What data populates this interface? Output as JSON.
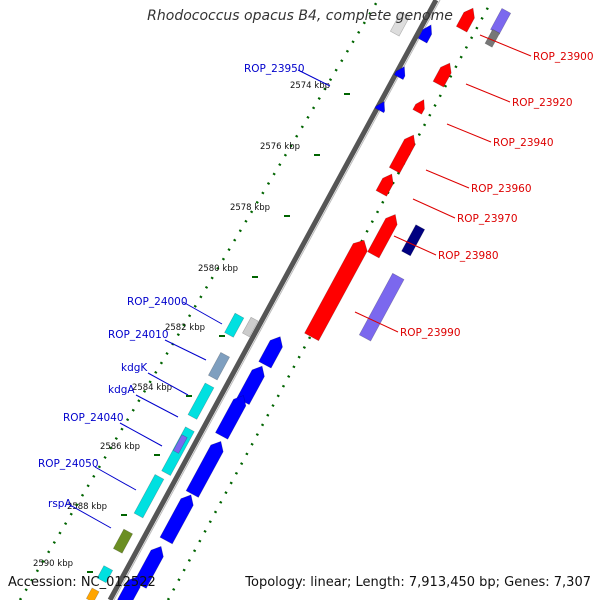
{
  "title": "Rhodococcus opacus B4, complete genome",
  "accession": "Accession: NC_012522",
  "summary": "Topology: linear; Length: 7,913,450 bp; Genes: 7,307",
  "colors": {
    "red": "#ff0000",
    "blue": "#0000ff",
    "purple": "#7b68ee",
    "navy": "#000080",
    "cyan": "#00e0e0",
    "olive": "#6b8e23",
    "orange": "#ffa500",
    "grey": "#777777",
    "label_blue": "#0000cc",
    "label_red": "#dd0000",
    "scale_green": "#006400"
  },
  "scale_labels": [
    {
      "text": "2574 kbp",
      "kbp": 2574
    },
    {
      "text": "2576 kbp",
      "kbp": 2576
    },
    {
      "text": "2578 kbp",
      "kbp": 2578
    },
    {
      "text": "2580 kbp",
      "kbp": 2580
    },
    {
      "text": "2582 kbp",
      "kbp": 2582
    },
    {
      "text": "2584 kbp",
      "kbp": 2584
    },
    {
      "text": "2586 kbp",
      "kbp": 2586
    },
    {
      "text": "2588 kbp",
      "kbp": 2588
    },
    {
      "text": "2590 kbp",
      "kbp": 2590
    }
  ],
  "gene_labels_left": [
    "ROP_23950",
    "ROP_24000",
    "ROP_24010",
    "kdgK",
    "kdgA",
    "ROP_24040",
    "ROP_24050",
    "rspA"
  ],
  "gene_labels_right": [
    "ROP_23900",
    "ROP_23920",
    "ROP_23940",
    "ROP_23960",
    "ROP_23970",
    "ROP_23980",
    "ROP_23990"
  ]
}
